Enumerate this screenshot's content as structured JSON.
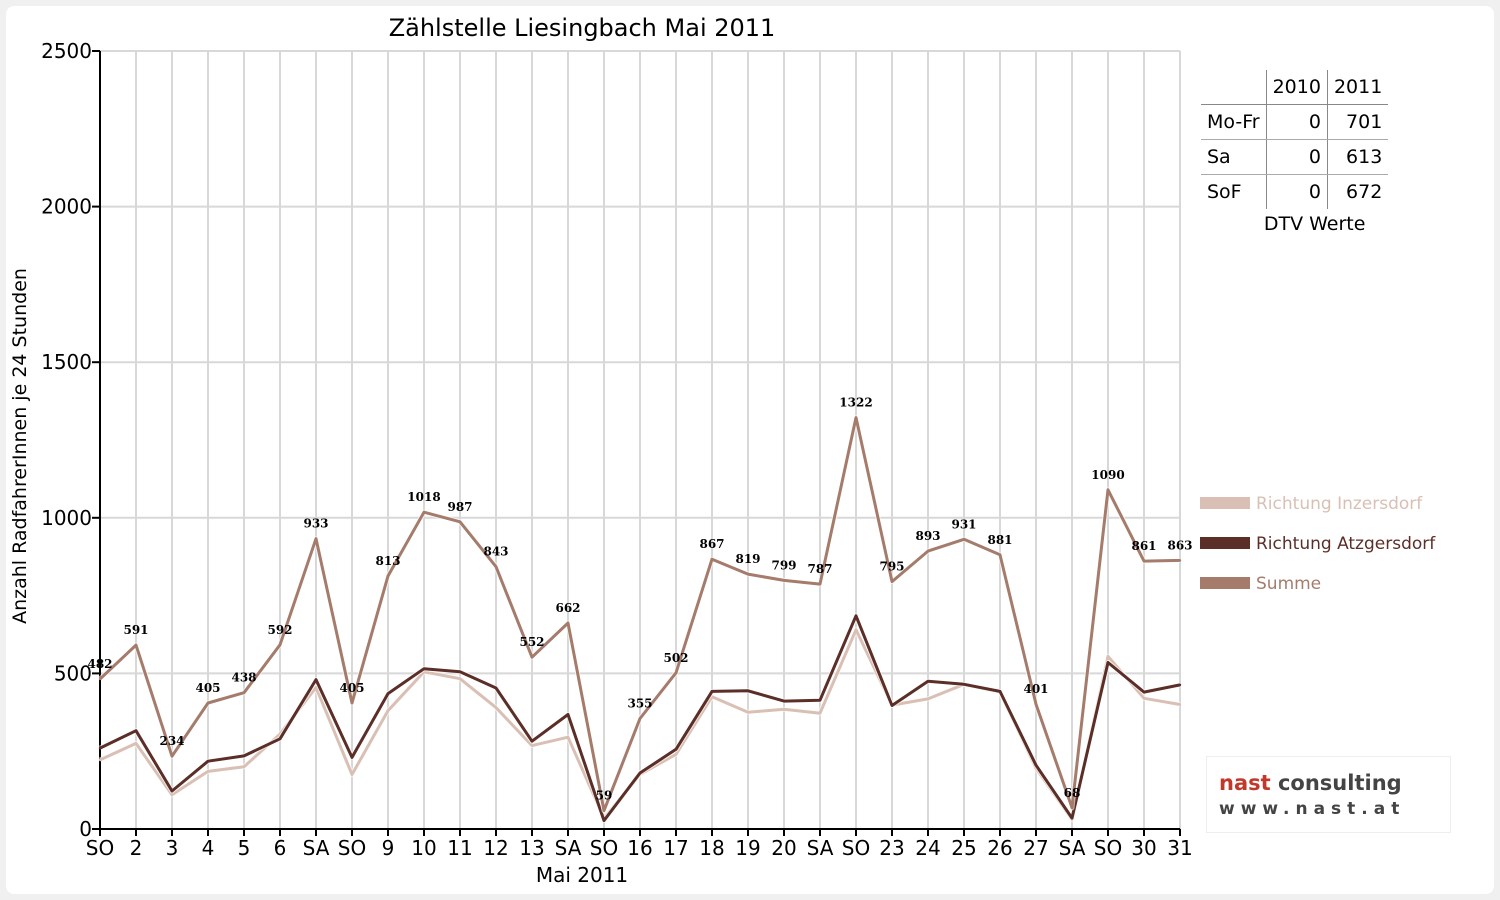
{
  "chart_data": {
    "type": "line",
    "title": "Zählstelle Liesingbach Mai 2011",
    "xlabel": "Mai 2011",
    "ylabel": "Anzahl RadfahrerInnen je 24 Stunden",
    "ylim": [
      0,
      2500
    ],
    "yticks": [
      "0",
      "500",
      "1000",
      "1500",
      "2000",
      "2500"
    ],
    "categories": [
      "SO",
      "2",
      "3",
      "4",
      "5",
      "6",
      "SA",
      "SO",
      "9",
      "10",
      "11",
      "12",
      "13",
      "SA",
      "SO",
      "16",
      "17",
      "18",
      "19",
      "20",
      "SA",
      "SO",
      "23",
      "24",
      "25",
      "26",
      "27",
      "SA",
      "SO",
      "30",
      "31"
    ],
    "sunday_color": "#ff0000",
    "grid": true,
    "legend_position": "right",
    "series": [
      {
        "name": "Richtung Inzersdorf",
        "color": "#d9bfb4",
        "values": [
          222,
          275,
          110,
          185,
          200,
          305,
          455,
          175,
          380,
          505,
          483,
          390,
          268,
          295,
          35,
          175,
          240,
          425,
          375,
          385,
          372,
          640,
          398,
          418,
          465,
          440,
          195,
          30,
          555,
          420,
          400
        ]
      },
      {
        "name": "Richtung Atzgersdorf",
        "color": "#5c2e28",
        "values": [
          260,
          316,
          122,
          218,
          235,
          290,
          480,
          230,
          435,
          515,
          505,
          453,
          282,
          368,
          27,
          180,
          256,
          442,
          444,
          411,
          414,
          685,
          397,
          475,
          465,
          442,
          205,
          35,
          535,
          440,
          463
        ]
      },
      {
        "name": "Summe",
        "color": "#a57b6c",
        "show_labels": true,
        "values": [
          482,
          591,
          234,
          405,
          438,
          592,
          933,
          405,
          813,
          1018,
          987,
          843,
          552,
          662,
          59,
          355,
          502,
          867,
          819,
          799,
          787,
          1322,
          795,
          893,
          931,
          881,
          401,
          68,
          1090,
          861,
          863
        ]
      }
    ]
  },
  "dtv_table": {
    "headers": [
      "",
      "2010",
      "2011"
    ],
    "rows": [
      {
        "label": "Mo-Fr",
        "v2010": "0",
        "v2011": "701"
      },
      {
        "label": "Sa",
        "v2010": "0",
        "v2011": "613"
      },
      {
        "label": "SoF",
        "v2010": "0",
        "v2011": "672"
      }
    ],
    "caption": "DTV Werte"
  },
  "logo": {
    "line1_a": "nast",
    "line1_b": " consulting",
    "line2": "www.nast.at"
  }
}
